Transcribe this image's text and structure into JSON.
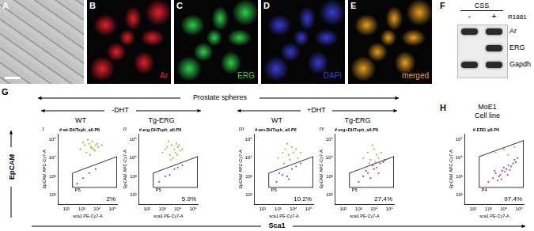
{
  "figure": {
    "image_panels": [
      {
        "letter": "A",
        "color": "#b4b4b4"
      },
      {
        "letter": "B",
        "label": "Ar",
        "color": "#e8202a"
      },
      {
        "letter": "C",
        "label": "ERG",
        "color": "#2fd04a"
      },
      {
        "letter": "D",
        "label": "DAPI",
        "color": "#3a3ad8"
      },
      {
        "letter": "E",
        "label": "merged",
        "color": "#e8a020"
      }
    ],
    "blot": {
      "letter": "F",
      "condition": "CSS",
      "lanes": [
        "-",
        "+"
      ],
      "treatment": "R1881",
      "rows": [
        {
          "label": "Ar",
          "bands": [
            true,
            true
          ]
        },
        {
          "label": "ERG",
          "bands": [
            false,
            true
          ]
        },
        {
          "label": "Gapdh",
          "bands": [
            true,
            true
          ]
        }
      ]
    },
    "section_G": {
      "letter": "G",
      "header": "Prostate spheres",
      "groups": [
        "-DHT",
        "+DHT"
      ],
      "genotypes": [
        "WT",
        "Tg-ERG",
        "WT",
        "Tg-ERG"
      ]
    },
    "section_H": {
      "letter": "H",
      "header": [
        "MoE1",
        "Cell line"
      ]
    },
    "axis_titles": {
      "y": "EpCAM",
      "x": "Sca1"
    }
  },
  "chart_data": [
    {
      "type": "scatter",
      "panel": "i",
      "title": "#-wt-DHTsph_all-P6",
      "x_label": "sca1 PE-Cy7-A",
      "y_label": "EpCAM APC-Cy7-A",
      "log": true,
      "grid": false,
      "xlim": [
        30,
        200000
      ],
      "ylim": [
        30,
        200000
      ],
      "xticks": [
        {
          "value": 100,
          "label": "10²"
        },
        {
          "value": 1000,
          "label": "10³"
        },
        {
          "value": 10000,
          "label": "10⁴"
        },
        {
          "value": 100000,
          "label": "10⁵"
        }
      ],
      "yticks": [
        {
          "value": 100,
          "label": "10²"
        },
        {
          "value": 1000,
          "label": "10³"
        },
        {
          "value": 10000,
          "label": "10⁴"
        },
        {
          "value": 100000,
          "label": "10⁵"
        }
      ],
      "gate": {
        "label": "P5",
        "percent_label": "2%",
        "x": [
          250,
          250,
          200000,
          200000
        ],
        "y": [
          250,
          1500,
          12000,
          250
        ]
      },
      "series": [
        {
          "color": "#7dcf3a",
          "x": [
            800,
            1500,
            2000,
            3000,
            4000,
            5000,
            6000,
            8000,
            10000,
            12000,
            2500,
            3500,
            7000,
            1200,
            20000,
            4500
          ],
          "y": [
            30000,
            50000,
            20000,
            60000,
            40000,
            80000,
            30000,
            50000,
            60000,
            40000,
            100000,
            15000,
            25000,
            70000,
            50000,
            35000
          ]
        },
        {
          "color": "#b03cc0",
          "x": [
            500,
            1200,
            3000,
            8000
          ],
          "y": [
            400,
            800,
            1500,
            2500
          ]
        }
      ]
    },
    {
      "type": "scatter",
      "panel": "ii",
      "title": "#-erg-DHTsph_all-P6",
      "x_label": "sca1 PE-Cy7-A",
      "y_label": "EpCAM APC-Cy7-A",
      "log": true,
      "grid": false,
      "xlim": [
        30,
        200000
      ],
      "ylim": [
        30,
        200000
      ],
      "xticks": [
        {
          "value": 100,
          "label": "10²"
        },
        {
          "value": 1000,
          "label": "10³"
        },
        {
          "value": 10000,
          "label": "10⁴"
        },
        {
          "value": 100000,
          "label": "10⁵"
        }
      ],
      "yticks": [
        {
          "value": 100,
          "label": "10²"
        },
        {
          "value": 1000,
          "label": "10³"
        },
        {
          "value": 10000,
          "label": "10⁴"
        },
        {
          "value": 100000,
          "label": "10⁵"
        }
      ],
      "gate": {
        "label": "P5",
        "percent_label": "5.9%",
        "x": [
          250,
          250,
          200000,
          200000
        ],
        "y": [
          250,
          1500,
          12000,
          250
        ]
      },
      "series": [
        {
          "color": "#7dcf3a",
          "x": [
            1000,
            2000,
            3000,
            4000,
            6000,
            8000,
            10000,
            15000,
            2500,
            5000,
            7000,
            12000,
            1500,
            20000,
            3500,
            9000
          ],
          "y": [
            20000,
            40000,
            15000,
            50000,
            30000,
            60000,
            40000,
            25000,
            80000,
            10000,
            20000,
            50000,
            30000,
            30000,
            8000,
            15000
          ]
        },
        {
          "color": "#b03cc0",
          "x": [
            600,
            1500,
            3000,
            6000,
            10000,
            20000
          ],
          "y": [
            500,
            1000,
            1200,
            2500,
            3000,
            4000
          ]
        }
      ]
    },
    {
      "type": "scatter",
      "panel": "iii",
      "title": "#-wt+DHTsph_all-P6",
      "x_label": "sca1 PE-Cy7-A",
      "y_label": "EpCAM APC-Cy7-A",
      "log": true,
      "grid": false,
      "xlim": [
        30,
        200000
      ],
      "ylim": [
        30,
        200000
      ],
      "xticks": [
        {
          "value": 100,
          "label": "10²"
        },
        {
          "value": 1000,
          "label": "10³"
        },
        {
          "value": 10000,
          "label": "10⁴"
        },
        {
          "value": 100000,
          "label": "10⁵"
        }
      ],
      "yticks": [
        {
          "value": 100,
          "label": "10²"
        },
        {
          "value": 1000,
          "label": "10³"
        },
        {
          "value": 10000,
          "label": "10⁴"
        },
        {
          "value": 100000,
          "label": "10⁵"
        }
      ],
      "gate": {
        "label": "P5",
        "percent_label": "10.2%",
        "x": [
          250,
          250,
          200000,
          200000
        ],
        "y": [
          250,
          1500,
          12000,
          250
        ]
      },
      "series": [
        {
          "color": "#7dcf3a",
          "x": [
            1000,
            2000,
            3000,
            5000,
            8000,
            10000,
            15000,
            20000,
            4000,
            6000,
            30000,
            2500
          ],
          "y": [
            10000,
            20000,
            30000,
            15000,
            40000,
            20000,
            30000,
            10000,
            60000,
            8000,
            20000,
            5000
          ]
        },
        {
          "color": "#b03cc0",
          "x": [
            800,
            2000,
            4000,
            8000,
            15000,
            30000,
            5000,
            1200
          ],
          "y": [
            500,
            1200,
            1000,
            2500,
            3500,
            5000,
            700,
            1500
          ]
        }
      ]
    },
    {
      "type": "scatter",
      "panel": "iv",
      "title": "#-erg+DHTsph_all-P6",
      "x_label": "sca1 PE-Cy7-A",
      "y_label": "EpCAM APC-Cy7-A",
      "log": true,
      "grid": false,
      "xlim": [
        30,
        200000
      ],
      "ylim": [
        30,
        200000
      ],
      "xticks": [
        {
          "value": 100,
          "label": "10²"
        },
        {
          "value": 1000,
          "label": "10³"
        },
        {
          "value": 10000,
          "label": "10⁴"
        },
        {
          "value": 100000,
          "label": "10⁵"
        }
      ],
      "yticks": [
        {
          "value": 100,
          "label": "10²"
        },
        {
          "value": 1000,
          "label": "10³"
        },
        {
          "value": 10000,
          "label": "10⁴"
        },
        {
          "value": 100000,
          "label": "10⁵"
        }
      ],
      "gate": {
        "label": "P5",
        "percent_label": "27.4%",
        "x": [
          250,
          250,
          200000,
          200000
        ],
        "y": [
          250,
          1500,
          12000,
          250
        ]
      },
      "series": [
        {
          "color": "#7dcf3a",
          "x": [
            2000,
            4000,
            6000,
            10000,
            15000,
            20000,
            30000,
            8000,
            5000,
            12000
          ],
          "y": [
            10000,
            20000,
            8000,
            30000,
            15000,
            10000,
            20000,
            50000,
            5000,
            6000
          ]
        },
        {
          "color": "#b03cc0",
          "x": [
            1000,
            2000,
            4000,
            6000,
            10000,
            15000,
            25000,
            40000,
            3000,
            8000,
            20000,
            50000
          ],
          "y": [
            500,
            1000,
            1500,
            800,
            2500,
            3000,
            5000,
            6000,
            2000,
            4000,
            1500,
            8000
          ]
        }
      ]
    },
    {
      "type": "scatter",
      "title": "#-ERG p6-P4",
      "x_label": "sca1 PE-Cy7-A",
      "y_label": "EpCAM APC-Cy7-A",
      "log": true,
      "grid": false,
      "xlim": [
        30,
        200000
      ],
      "ylim": [
        30,
        200000
      ],
      "xticks": [
        {
          "value": 100,
          "label": "10²"
        },
        {
          "value": 1000,
          "label": "10³"
        },
        {
          "value": 10000,
          "label": "10⁴"
        },
        {
          "value": 100000,
          "label": "10⁵"
        }
      ],
      "yticks": [
        {
          "value": 100,
          "label": "10²"
        },
        {
          "value": 1000,
          "label": "10³"
        },
        {
          "value": 10000,
          "label": "10⁴"
        },
        {
          "value": 100000,
          "label": "10⁵"
        }
      ],
      "gate": {
        "label": "P4",
        "percent_label": "97.4%",
        "x": [
          250,
          250,
          200000,
          200000
        ],
        "y": [
          250,
          12000,
          90000,
          250
        ]
      },
      "series": [
        {
          "color": "#7dcf3a",
          "x": [
            3000,
            10000,
            20000,
            50000
          ],
          "y": [
            20000,
            30000,
            15000,
            40000
          ]
        },
        {
          "color": "#b03cc0",
          "x": [
            1000,
            2000,
            3000,
            5000,
            8000,
            10000,
            15000,
            20000,
            30000,
            40000,
            60000,
            4000,
            6000,
            12000,
            25000,
            50000,
            2500,
            80000,
            7000,
            18000
          ],
          "y": [
            500,
            800,
            1500,
            1000,
            2000,
            3000,
            2500,
            4000,
            3500,
            5000,
            6000,
            600,
            1200,
            1800,
            2200,
            8000,
            2000,
            10000,
            700,
            1200
          ]
        }
      ]
    }
  ]
}
